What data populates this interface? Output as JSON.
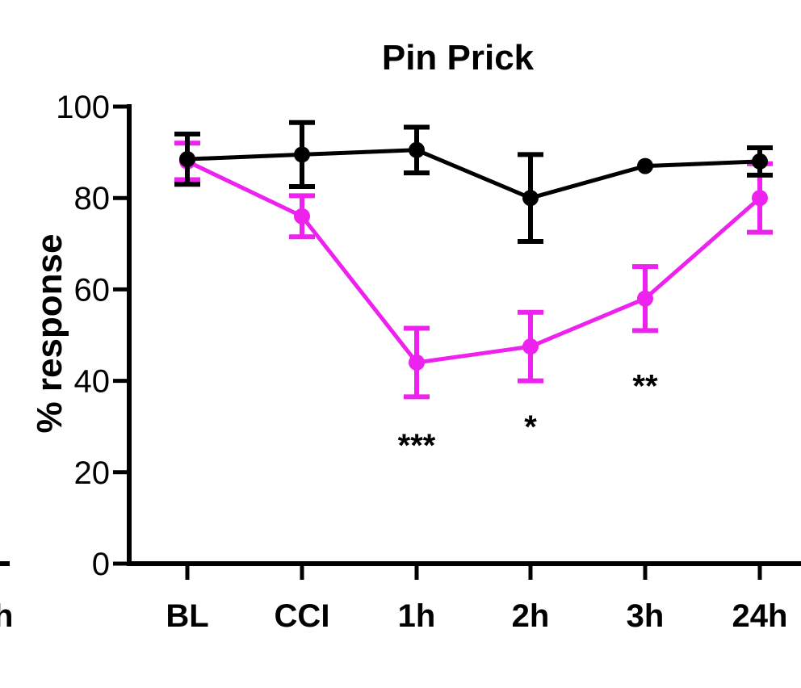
{
  "chart_data": {
    "type": "line",
    "title": "Pin Prick",
    "xlabel": "",
    "ylabel": "% response",
    "ylim": [
      0,
      100
    ],
    "yticks": [
      "0",
      "20",
      "40",
      "60",
      "80",
      "100"
    ],
    "categories": [
      "BL",
      "CCI",
      "1h",
      "2h",
      "3h",
      "24h"
    ],
    "grid": false,
    "legend": "none",
    "series": [
      {
        "color": "#000000",
        "values": [
          88.5,
          89.5,
          90.5,
          80,
          87,
          88
        ],
        "error": [
          5.5,
          7,
          5,
          9.5,
          0,
          3
        ]
      },
      {
        "color": "#ee22ee",
        "values": [
          88,
          76,
          44,
          47.5,
          58,
          80
        ],
        "error": [
          4,
          4.5,
          7.5,
          7.5,
          7,
          7.5
        ]
      }
    ],
    "annotations": [
      {
        "category": "1h",
        "text": "***",
        "y": 26
      },
      {
        "category": "2h",
        "text": "*",
        "y": 30
      },
      {
        "category": "3h",
        "text": "**",
        "y": 39
      }
    ],
    "partial_left_tick_label": "h"
  }
}
